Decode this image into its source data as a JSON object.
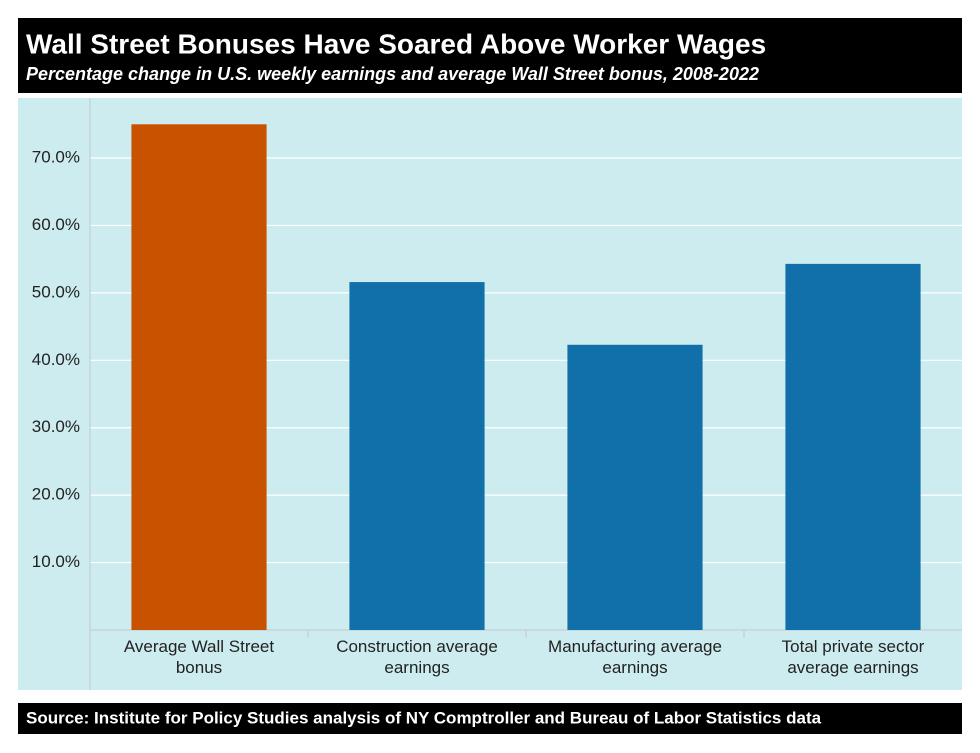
{
  "chart_data": {
    "type": "bar",
    "title": "Wall Street Bonuses Have Soared Above Worker Wages",
    "subtitle": "Percentage change in U.S. weekly earnings and average Wall Street bonus, 2008-2022",
    "source": "Source: Institute for Policy Studies analysis of NY Comptroller and Bureau of Labor Statistics data",
    "categories": [
      "Average Wall Street bonus",
      "Construction average earnings",
      "Manufacturing average earnings",
      "Total private sector average earnings"
    ],
    "values": [
      75.0,
      51.6,
      42.3,
      54.3
    ],
    "colors": [
      "#c85200",
      "#1170aa",
      "#1170aa",
      "#1170aa"
    ],
    "ylim": [
      0,
      78.9
    ],
    "yticks": [
      {
        "value": 10,
        "label": "10.0%"
      },
      {
        "value": 20,
        "label": "20.0%"
      },
      {
        "value": 30,
        "label": "30.0%"
      },
      {
        "value": 40,
        "label": "40.0%"
      },
      {
        "value": 50,
        "label": "50.0%"
      },
      {
        "value": 60,
        "label": "60.0%"
      },
      {
        "value": 70,
        "label": "70.0%"
      }
    ],
    "grid": true
  }
}
